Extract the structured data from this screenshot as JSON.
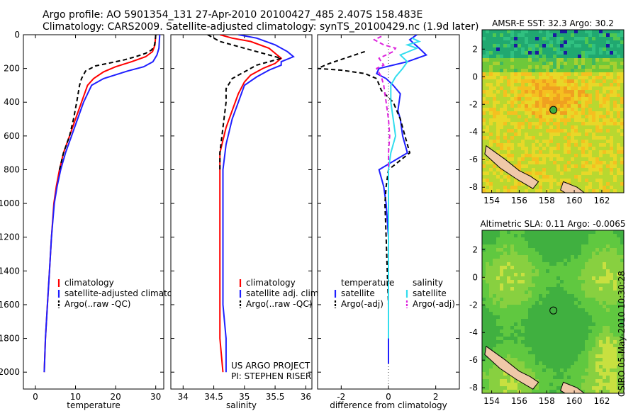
{
  "header": {
    "line1": "Argo profile: AO 5901354_131 27-Apr-2010 20100427_485 2.407S 158.483E",
    "line2": "Climatology: CARS2009. Satellite-adjusted climatology: synTS_20100429.nc (1.9d later)"
  },
  "side_label": "CSIRO 05-May-2010 10:30:28",
  "project_label": [
    "US ARGO PROJECT",
    "PI: STEPHEN RISER"
  ],
  "chart_data": [
    {
      "type": "line",
      "xlabel": "temperature",
      "ylabel": "",
      "xlim": [
        -3,
        32
      ],
      "ylim": [
        2100,
        0
      ],
      "xticks": [
        0,
        10,
        20,
        30
      ],
      "yticks": [
        0,
        200,
        400,
        600,
        800,
        1000,
        1200,
        1400,
        1600,
        1800,
        2000
      ],
      "legend": [
        "climatology",
        "satellite-adjusted climatology",
        "Argo(..raw -QC)"
      ],
      "series": [
        {
          "name": "climatology",
          "color": "#ff0000",
          "dash": "",
          "points": [
            [
              30.0,
              0
            ],
            [
              29.8,
              60
            ],
            [
              29.2,
              100
            ],
            [
              27.5,
              130
            ],
            [
              24,
              160
            ],
            [
              20.0,
              190
            ],
            [
              17,
              220
            ],
            [
              14.5,
              260
            ],
            [
              13,
              300
            ],
            [
              11.5,
              400
            ],
            [
              10,
              500
            ],
            [
              8.5,
              600
            ],
            [
              7,
              700
            ],
            [
              6,
              800
            ],
            [
              5.2,
              900
            ],
            [
              4.6,
              1000
            ],
            [
              4,
              1200
            ],
            [
              3.5,
              1400
            ],
            [
              3.0,
              1600
            ],
            [
              2.5,
              1800
            ],
            [
              2.2,
              2000
            ]
          ]
        },
        {
          "name": "satellite-adjusted climatology",
          "color": "#1f1fff",
          "dash": "",
          "points": [
            [
              31.0,
              0
            ],
            [
              30.8,
              80
            ],
            [
              30.3,
              120
            ],
            [
              29.3,
              160
            ],
            [
              27,
              190
            ],
            [
              23,
              215
            ],
            [
              17,
              260
            ],
            [
              14,
              300
            ],
            [
              12,
              400
            ],
            [
              10.5,
              500
            ],
            [
              9,
              600
            ],
            [
              7.5,
              700
            ],
            [
              6.3,
              800
            ],
            [
              5.4,
              900
            ],
            [
              4.7,
              1000
            ],
            [
              4,
              1200
            ],
            [
              3.5,
              1400
            ],
            [
              3.0,
              1600
            ],
            [
              2.5,
              1800
            ],
            [
              2.2,
              2000
            ]
          ]
        },
        {
          "name": "Argo(..raw -QC)",
          "color": "#000000",
          "dash": "6,4",
          "points": [
            [
              30.0,
              0
            ],
            [
              29.9,
              30
            ],
            [
              29.7,
              60
            ],
            [
              29,
              90
            ],
            [
              27.5,
              110
            ],
            [
              25,
              130
            ],
            [
              22,
              150
            ],
            [
              19,
              165
            ],
            [
              15,
              185
            ],
            [
              12.5,
              215
            ],
            [
              11.5,
              260
            ],
            [
              11,
              300
            ],
            [
              10.3,
              400
            ],
            [
              9.5,
              500
            ],
            [
              8.5,
              600
            ],
            [
              7,
              700
            ],
            [
              6,
              800
            ]
          ]
        }
      ]
    },
    {
      "type": "line",
      "xlabel": "salinity",
      "ylabel": "",
      "xlim": [
        33.8,
        36.1
      ],
      "ylim": [
        2100,
        0
      ],
      "xticks": [
        34,
        34.5,
        35,
        35.5,
        36
      ],
      "legend": [
        "climatology",
        "satellite adj. clim.",
        "Argo(..raw -QC)"
      ],
      "series": [
        {
          "name": "climatology",
          "color": "#ff0000",
          "dash": "",
          "points": [
            [
              34.6,
              0
            ],
            [
              34.8,
              20
            ],
            [
              35.1,
              40
            ],
            [
              35.4,
              80
            ],
            [
              35.6,
              140
            ],
            [
              35.5,
              170
            ],
            [
              35.3,
              200
            ],
            [
              35.1,
              240
            ],
            [
              35.0,
              280
            ],
            [
              34.9,
              350
            ],
            [
              34.8,
              450
            ],
            [
              34.7,
              550
            ],
            [
              34.6,
              700
            ],
            [
              34.6,
              900
            ],
            [
              34.6,
              1200
            ],
            [
              34.6,
              1500
            ],
            [
              34.6,
              1800
            ],
            [
              34.65,
              2000
            ]
          ]
        },
        {
          "name": "satellite adj. clim.",
          "color": "#1f1fff",
          "dash": "",
          "points": [
            [
              34.9,
              0
            ],
            [
              35.2,
              20
            ],
            [
              35.5,
              60
            ],
            [
              35.7,
              100
            ],
            [
              35.8,
              130
            ],
            [
              35.6,
              160
            ],
            [
              35.6,
              180
            ],
            [
              35.4,
              210
            ],
            [
              35.2,
              250
            ],
            [
              35.0,
              300
            ],
            [
              34.9,
              400
            ],
            [
              34.8,
              500
            ],
            [
              34.7,
              650
            ],
            [
              34.65,
              800
            ],
            [
              34.65,
              1000
            ],
            [
              34.65,
              1300
            ],
            [
              34.65,
              1600
            ],
            [
              34.7,
              1800
            ],
            [
              34.7,
              2000
            ]
          ]
        },
        {
          "name": "Argo(..raw -QC)",
          "color": "#000000",
          "dash": "6,4",
          "points": [
            [
              34.4,
              0
            ],
            [
              34.6,
              40
            ],
            [
              34.9,
              70
            ],
            [
              35.3,
              110
            ],
            [
              35.6,
              140
            ],
            [
              35.2,
              180
            ],
            [
              35.0,
              220
            ],
            [
              34.8,
              260
            ],
            [
              34.7,
              320
            ],
            [
              34.7,
              400
            ],
            [
              34.65,
              550
            ],
            [
              34.6,
              700
            ],
            [
              34.6,
              800
            ]
          ]
        }
      ]
    },
    {
      "type": "line",
      "xlabel": "difference from climatology",
      "ylabel": "",
      "xlim": [
        -3,
        3
      ],
      "ylim": [
        2100,
        0
      ],
      "xticks": [
        -2,
        0,
        2
      ],
      "legend": [
        "temperature",
        "satellite",
        "Argo(-adj)",
        "salinity",
        "satellite",
        "Argo(-adj)"
      ],
      "series": [
        {
          "name": "temperature satellite",
          "color": "#1f1fff",
          "dash": "",
          "points": [
            [
              1.2,
              0
            ],
            [
              0.9,
              30
            ],
            [
              1.3,
              80
            ],
            [
              1.6,
              120
            ],
            [
              0.8,
              160
            ],
            [
              -0.4,
              200
            ],
            [
              -0.5,
              230
            ],
            [
              -0.1,
              260
            ],
            [
              0.2,
              300
            ],
            [
              0.5,
              350
            ],
            [
              0.4,
              450
            ],
            [
              0.5,
              500
            ],
            [
              0.6,
              600
            ],
            [
              0.8,
              700
            ],
            [
              -0.4,
              800
            ],
            [
              -0.2,
              900
            ],
            [
              -0.1,
              1000
            ],
            [
              0.0,
              1200
            ],
            [
              0.0,
              1400
            ],
            [
              0.0,
              1600
            ],
            [
              0.0,
              1800
            ],
            [
              0.0,
              1950
            ]
          ]
        },
        {
          "name": "temperature Argo(-adj)",
          "color": "#000000",
          "dash": "6,4",
          "points": [
            [
              -1.0,
              100
            ],
            [
              -2.5,
              170
            ],
            [
              -3.0,
              200
            ],
            [
              -2.0,
              210
            ],
            [
              -1.0,
              230
            ],
            [
              -0.5,
              260
            ],
            [
              -0.3,
              330
            ],
            [
              0.2,
              400
            ],
            [
              0.5,
              500
            ],
            [
              0.7,
              600
            ],
            [
              0.9,
              700
            ],
            [
              0.0,
              800
            ],
            [
              -0.1,
              900
            ],
            [
              -0.15,
              1000
            ],
            [
              -0.1,
              1200
            ],
            [
              -0.05,
              1400
            ],
            [
              0.0,
              1600
            ],
            [
              0.0,
              1800
            ]
          ]
        },
        {
          "name": "salinity satellite",
          "color": "#33ddee",
          "dash": "",
          "points": [
            [
              1.0,
              20
            ],
            [
              1.3,
              40
            ],
            [
              0.8,
              60
            ],
            [
              1.2,
              80
            ],
            [
              0.5,
              120
            ],
            [
              0.8,
              160
            ],
            [
              0.6,
              200
            ],
            [
              0.3,
              250
            ],
            [
              0.1,
              300
            ],
            [
              0.1,
              400
            ],
            [
              0.2,
              500
            ],
            [
              0.3,
              600
            ],
            [
              0.1,
              700
            ],
            [
              0.0,
              800
            ],
            [
              0.0,
              1000
            ],
            [
              0.0,
              1200
            ],
            [
              0.0,
              1400
            ],
            [
              0.0,
              1600
            ],
            [
              0.0,
              1800
            ]
          ]
        },
        {
          "name": "salinity Argo(-adj)",
          "color": "#dd22dd",
          "dash": "6,4",
          "points": [
            [
              -0.3,
              10
            ],
            [
              -0.6,
              30
            ],
            [
              -0.2,
              60
            ],
            [
              0.3,
              80
            ],
            [
              0.2,
              100
            ],
            [
              -0.4,
              140
            ],
            [
              -0.2,
              180
            ],
            [
              -0.5,
              200
            ],
            [
              -0.3,
              250
            ],
            [
              -0.2,
              300
            ],
            [
              -0.1,
              400
            ],
            [
              0.0,
              500
            ],
            [
              0.05,
              600
            ],
            [
              0.0,
              700
            ],
            [
              0.0,
              800
            ]
          ]
        }
      ]
    },
    {
      "type": "heatmap",
      "title": "AMSR-E SST: 32.3 Argo: 30.2",
      "xlim": [
        153.3,
        163.6
      ],
      "ylim": [
        -8.4,
        3.4
      ],
      "xticks": [
        154,
        156,
        158,
        160,
        162
      ],
      "yticks": [
        2,
        0,
        -2,
        -4,
        -6,
        -8
      ],
      "float_position": {
        "lon": 158.483,
        "lat": -2.407
      }
    },
    {
      "type": "heatmap",
      "title": "Altimetric SLA: 0.11 Argo: -0.0065",
      "xlim": [
        153.3,
        163.6
      ],
      "ylim": [
        -8.4,
        3.4
      ],
      "xticks": [
        154,
        156,
        158,
        160,
        162
      ],
      "yticks": [
        2,
        0,
        -2,
        -4,
        -6,
        -8
      ],
      "float_position": {
        "lon": 158.483,
        "lat": -2.407
      }
    }
  ]
}
